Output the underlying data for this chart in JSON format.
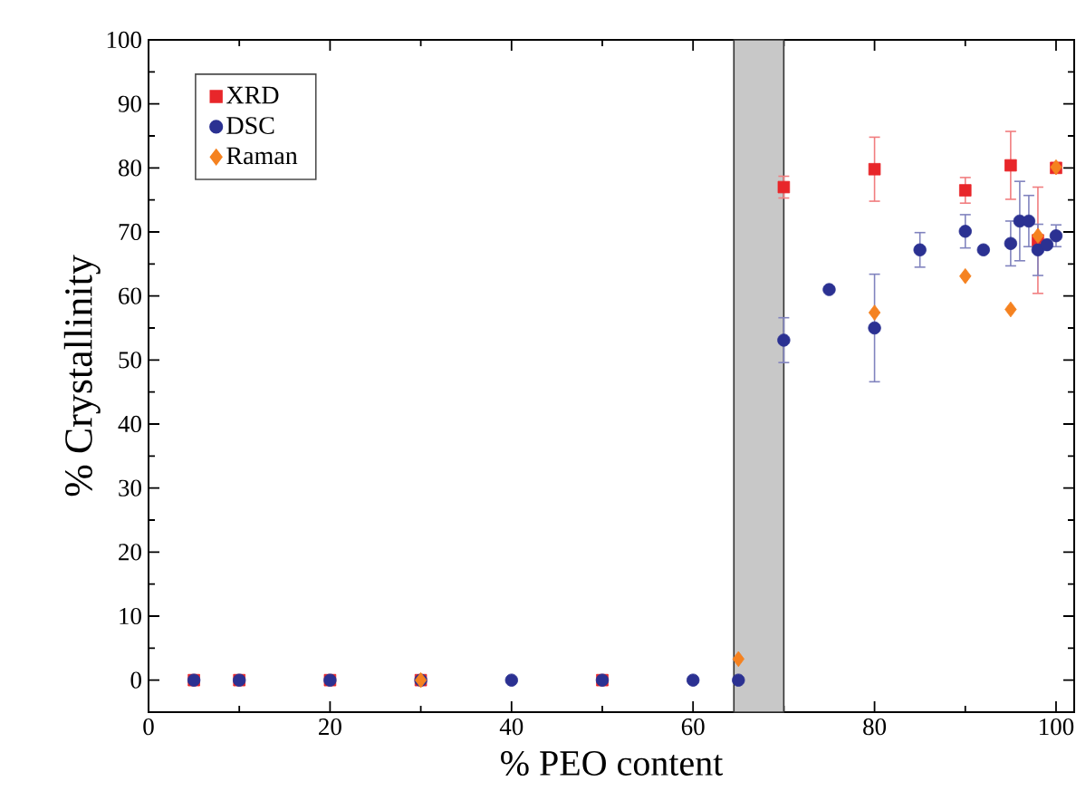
{
  "chart_data": {
    "type": "scatter",
    "xlabel": "% PEO content",
    "ylabel": "% Crystallinity",
    "xlim": [
      0,
      102
    ],
    "ylim": [
      -5,
      100
    ],
    "xticks": [
      0,
      20,
      40,
      60,
      80,
      100
    ],
    "yticks": [
      0,
      10,
      20,
      30,
      40,
      50,
      60,
      70,
      80,
      90,
      100
    ],
    "legend": "top left",
    "grid": false,
    "bands": [
      {
        "axis": "x",
        "from": 64.5,
        "to": 70,
        "color": "#c8c8c8"
      }
    ],
    "series": [
      {
        "name": "XRD",
        "color": "#e8262a",
        "marker": "square",
        "x": [
          5,
          10,
          20,
          30,
          50,
          70,
          80,
          90,
          95,
          98,
          100
        ],
        "values": [
          0,
          0,
          0,
          0,
          0,
          77,
          79.8,
          76.5,
          80.4,
          68.7,
          80
        ],
        "errors": [
          null,
          null,
          null,
          null,
          null,
          1.7,
          5,
          2,
          5.3,
          8.3,
          null
        ]
      },
      {
        "name": "DSC",
        "color": "#2b3192",
        "marker": "circle",
        "x": [
          5,
          10,
          20,
          30,
          40,
          50,
          60,
          65,
          70,
          75,
          80,
          85,
          90,
          92,
          95,
          96,
          97,
          98,
          99,
          100
        ],
        "values": [
          0,
          0,
          0,
          0,
          0,
          0,
          0,
          0,
          53.1,
          61,
          55,
          67.2,
          70.1,
          67.2,
          68.2,
          71.7,
          71.7,
          67.2,
          68,
          69.4
        ],
        "errors": [
          null,
          null,
          null,
          null,
          null,
          null,
          null,
          null,
          3.5,
          null,
          8.4,
          2.7,
          2.6,
          null,
          3.5,
          6.2,
          4,
          4,
          null,
          1.7
        ]
      },
      {
        "name": "Raman",
        "color": "#f58220",
        "marker": "diamond",
        "x": [
          30,
          65,
          80,
          90,
          95,
          98,
          100
        ],
        "values": [
          0,
          3.3,
          57.4,
          63.1,
          57.9,
          69.4,
          80.1
        ]
      }
    ]
  }
}
